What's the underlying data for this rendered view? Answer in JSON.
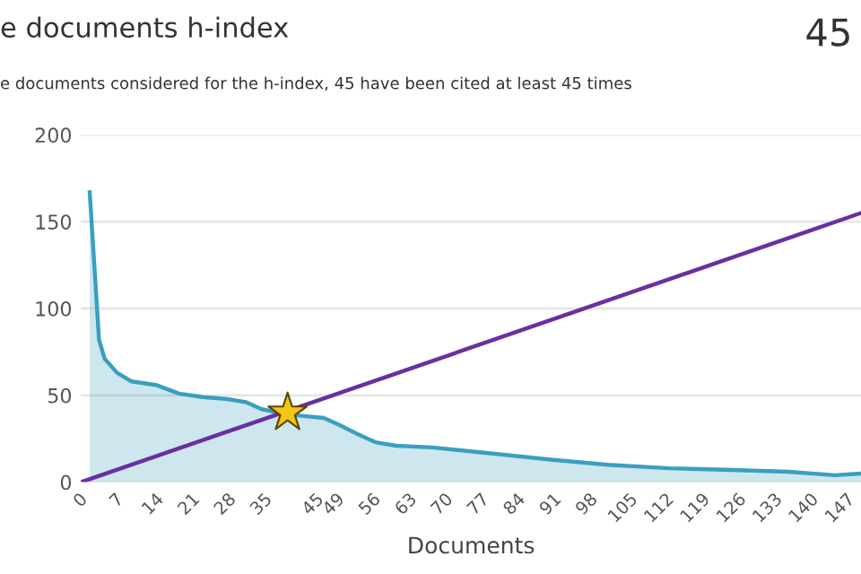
{
  "chart_data": {
    "type": "area",
    "title": "e documents h-index",
    "subtitle": "e documents considered for the h-index, 45 have been cited at least 45 times",
    "xlabel": "Documents",
    "annotations": [
      "45"
    ],
    "series": [
      {
        "color": "#3a9fbf",
        "x": [
          1.7,
          3.5,
          4.6,
          7,
          9.8,
          14.5,
          19,
          23.6,
          28,
          32,
          35,
          40,
          47,
          50,
          54,
          57,
          61,
          68,
          78,
          91,
          102,
          114,
          126,
          137,
          146,
          151
        ],
        "values": [
          167,
          82,
          71,
          63,
          58,
          56,
          51,
          49,
          48,
          46,
          42,
          39,
          37,
          33,
          27,
          23,
          21,
          20,
          17,
          13,
          10,
          8,
          7,
          6,
          4,
          5
        ]
      },
      {
        "type": "line",
        "color": "#6a2fa0",
        "x": [
          0,
          151
        ],
        "values": [
          0,
          155
        ]
      },
      {
        "type": "scatter",
        "color": "#f5c518",
        "marker": "star",
        "x": [
          40
        ],
        "values": [
          40
        ]
      }
    ],
    "xlim": [
      0,
      151
    ],
    "ylim": [
      0,
      200
    ],
    "xticks": [
      0,
      7,
      14,
      21,
      28,
      35,
      45,
      49,
      56,
      63,
      70,
      77,
      84,
      91,
      98,
      105,
      112,
      119,
      126,
      133,
      140,
      147
    ],
    "yticks": [
      0,
      50,
      100,
      150,
      200
    ],
    "grid": "y",
    "legend": false
  }
}
